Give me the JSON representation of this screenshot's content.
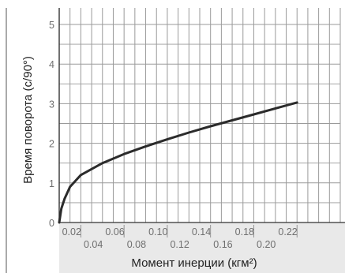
{
  "chart_data": {
    "type": "line",
    "xlabel": "Момент инерции (кгм²)",
    "ylabel": "Время поворота (с/90°)",
    "xlim": [
      0,
      0.26
    ],
    "ylim": [
      0,
      5
    ],
    "x_ticks_upper": [
      "0.02",
      "0.06",
      "0.10",
      "0.14",
      "0.18",
      "0.22"
    ],
    "x_ticks_lower": [
      "0.04",
      "0.08",
      "0.12",
      "0.16",
      "0.20"
    ],
    "y_ticks": [
      "0",
      "1",
      "2",
      "3",
      "4",
      "5"
    ],
    "grid": true,
    "series": [
      {
        "x": [
          0,
          0.002,
          0.005,
          0.01,
          0.02,
          0.04,
          0.06,
          0.08,
          0.1,
          0.12,
          0.14,
          0.16,
          0.18,
          0.2,
          0.22
        ],
        "y": [
          0,
          0.35,
          0.6,
          0.9,
          1.2,
          1.5,
          1.73,
          1.92,
          2.1,
          2.27,
          2.43,
          2.58,
          2.73,
          2.88,
          3.03
        ]
      }
    ],
    "colors": {
      "line": "#2b2b2b",
      "grid": "#9a9a9a",
      "axis": "#333333",
      "bottom_band": "#e9e9e9"
    }
  }
}
